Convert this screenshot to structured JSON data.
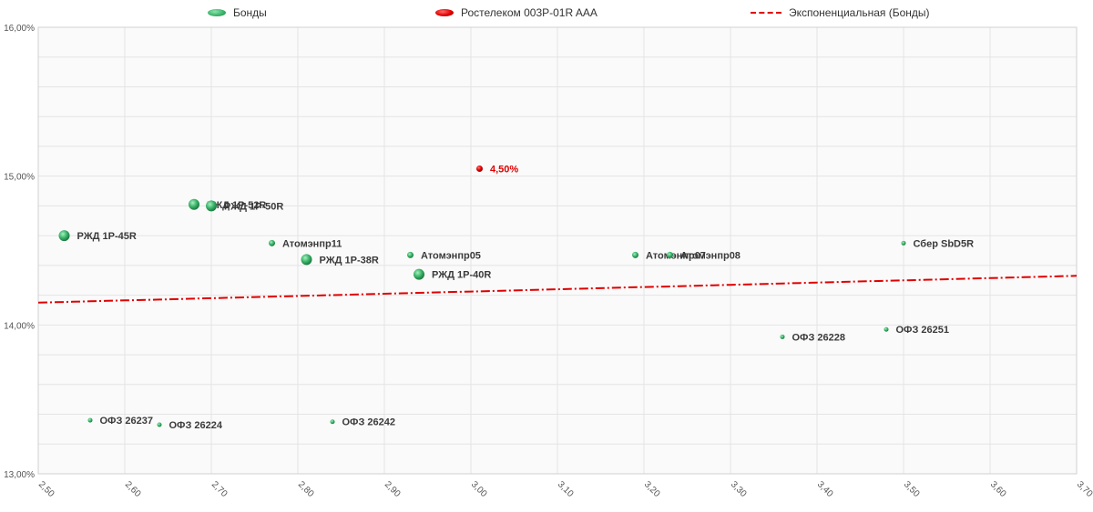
{
  "legend": {
    "bonds_label": "Бонды",
    "rostelecom_label": "Ростелеком 003P-01R AAA",
    "trend_label": "Экспоненциальная (Бонды)"
  },
  "colors": {
    "bonds": "#3cb46a",
    "bonds_dark": "#1f8a4a",
    "highlight": "#e00000",
    "trend": "#e00000",
    "grid": "#e4e4e4",
    "plot_bg": "#fafafa",
    "label": "#333333"
  },
  "chart_data": {
    "type": "scatter",
    "xlim": [
      2.5,
      3.7
    ],
    "ylim": [
      13.0,
      16.0
    ],
    "x_ticks": [
      "2,50",
      "2,60",
      "2,70",
      "2,80",
      "2,90",
      "3,00",
      "3,10",
      "3,20",
      "3,30",
      "3,40",
      "3,50",
      "3,60",
      "3,70"
    ],
    "y_ticks": [
      "13,00%",
      "14,00%",
      "15,00%",
      "16,00%"
    ],
    "grid": true,
    "legend_position": "top",
    "series": [
      {
        "name": "Бонды",
        "points": [
          {
            "label": "РЖД 1Р-45R",
            "x": 2.53,
            "y": 14.6,
            "size": "large"
          },
          {
            "label": "РЖД 1Р-52R",
            "x": 2.68,
            "y": 14.81,
            "size": "large"
          },
          {
            "label": "РЖД 1Р-50R",
            "x": 2.7,
            "y": 14.8,
            "size": "large"
          },
          {
            "label": "Атомэнпр11",
            "x": 2.77,
            "y": 14.55,
            "size": "small"
          },
          {
            "label": "РЖД 1Р-38R",
            "x": 2.81,
            "y": 14.44,
            "size": "large"
          },
          {
            "label": "Атомэнпр05",
            "x": 2.93,
            "y": 14.47,
            "size": "small"
          },
          {
            "label": "РЖД 1Р-40R",
            "x": 2.94,
            "y": 14.34,
            "size": "large"
          },
          {
            "label": "Атомэнпр07",
            "x": 3.19,
            "y": 14.47,
            "size": "small"
          },
          {
            "label": "Атомэнпр08",
            "x": 3.23,
            "y": 14.47,
            "size": "small"
          },
          {
            "label": "Сбер SbD5R",
            "x": 3.5,
            "y": 14.55,
            "size": "tiny"
          },
          {
            "label": "ОФЗ 26228",
            "x": 3.36,
            "y": 13.92,
            "size": "tiny"
          },
          {
            "label": "ОФЗ 26251",
            "x": 3.48,
            "y": 13.97,
            "size": "tiny"
          },
          {
            "label": "ОФЗ 26237",
            "x": 2.56,
            "y": 13.36,
            "size": "tiny"
          },
          {
            "label": "ОФЗ 26224",
            "x": 2.64,
            "y": 13.33,
            "size": "tiny"
          },
          {
            "label": "ОФЗ 26242",
            "x": 2.84,
            "y": 13.35,
            "size": "tiny"
          }
        ]
      },
      {
        "name": "Ростелеком 003P-01R AAA",
        "points": [
          {
            "label": "4,50%",
            "x": 3.01,
            "y": 15.05,
            "size": "small"
          }
        ]
      }
    ],
    "trendline": {
      "name": "Экспоненциальная (Бонды)",
      "type": "exponential",
      "x": [
        2.5,
        3.7
      ],
      "y": [
        14.15,
        14.33
      ]
    }
  }
}
